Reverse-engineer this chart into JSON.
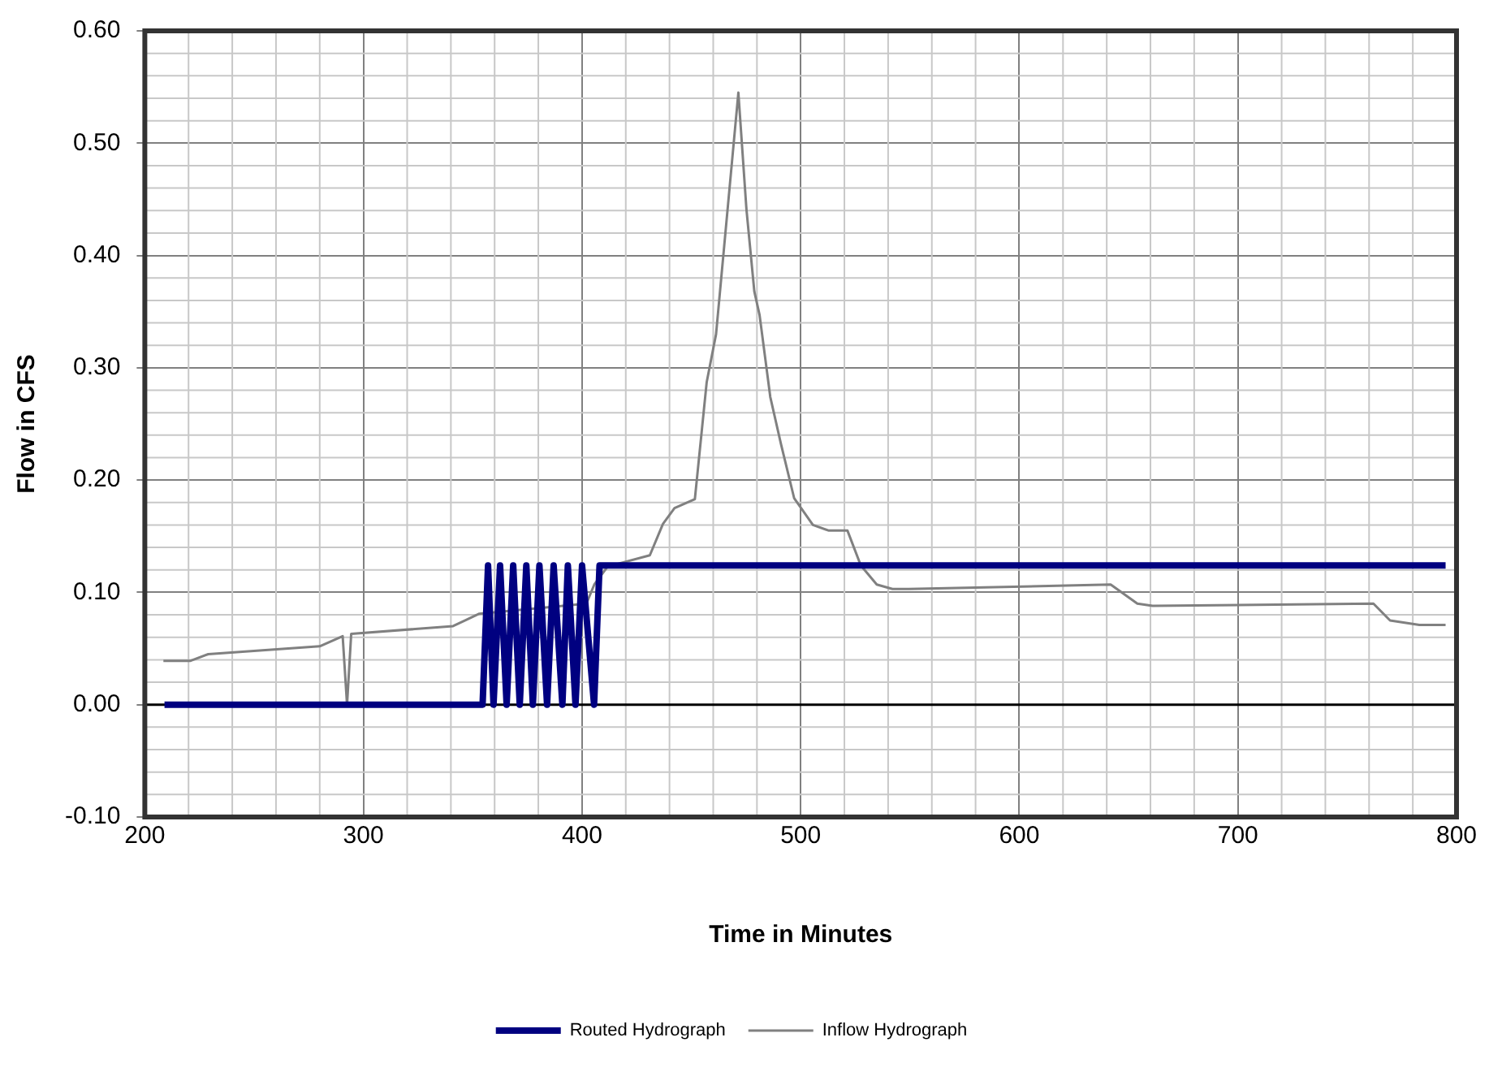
{
  "chart_data": {
    "type": "line",
    "xlabel": "Time in Minutes",
    "ylabel": "Flow in CFS",
    "xlim": [
      200,
      800
    ],
    "xticks": [
      200,
      300,
      400,
      500,
      600,
      700,
      800
    ],
    "ylim": [
      -0.1,
      0.6
    ],
    "yticks": [
      {
        "value": -0.1,
        "label": "-0.10"
      },
      {
        "value": 0,
        "label": "0.00"
      },
      {
        "value": 0.1,
        "label": "0.10"
      },
      {
        "value": 0.2,
        "label": "0.20"
      },
      {
        "value": 0.3,
        "label": "0.30"
      },
      {
        "value": 0.4,
        "label": "0.40"
      },
      {
        "value": 0.5,
        "label": "0.50"
      },
      {
        "value": 0.6,
        "label": "0.60"
      }
    ],
    "grid": true,
    "legend": "bottom",
    "marker": "none",
    "line_style": "solid",
    "series": [
      {
        "name": "Routed Hydrograph",
        "color": "#000080",
        "x": [
          209,
          354.5,
          357,
          359.5,
          362.5,
          365.5,
          368.5,
          371.5,
          374.5,
          377.5,
          380.5,
          384,
          387,
          391,
          393.5,
          397,
          400,
          405.5,
          408,
          795
        ],
        "values": [
          0,
          0,
          0.124,
          0,
          0.124,
          0,
          0.124,
          0,
          0.124,
          0,
          0.124,
          0,
          0.124,
          0,
          0.124,
          0,
          0.124,
          0,
          0.124,
          0.124
        ]
      },
      {
        "name": "Inflow Hydrograph",
        "color": "#808080",
        "x": [
          208.5,
          220.7,
          229,
          280,
          290.5,
          292.5,
          294.4,
          341,
          353,
          402,
          405.6,
          411.7,
          431,
          437,
          442.3,
          451.6,
          457,
          461.3,
          471.5,
          475.2,
          478.8,
          481.2,
          486.1,
          491,
          497,
          505.6,
          512.9,
          521.4,
          527.5,
          534.8,
          542,
          549.4,
          641.8,
          654,
          661,
          762,
          769.6,
          783,
          795
        ],
        "values": [
          0.039,
          0.039,
          0.045,
          0.052,
          0.061,
          0,
          0.063,
          0.07,
          0.081,
          0.09,
          0.107,
          0.123,
          0.133,
          0.161,
          0.175,
          0.183,
          0.287,
          0.33,
          0.545,
          0.441,
          0.368,
          0.347,
          0.274,
          0.232,
          0.184,
          0.16,
          0.155,
          0.155,
          0.124,
          0.107,
          0.103,
          0.103,
          0.107,
          0.09,
          0.088,
          0.09,
          0.075,
          0.071,
          0.071
        ]
      }
    ]
  }
}
